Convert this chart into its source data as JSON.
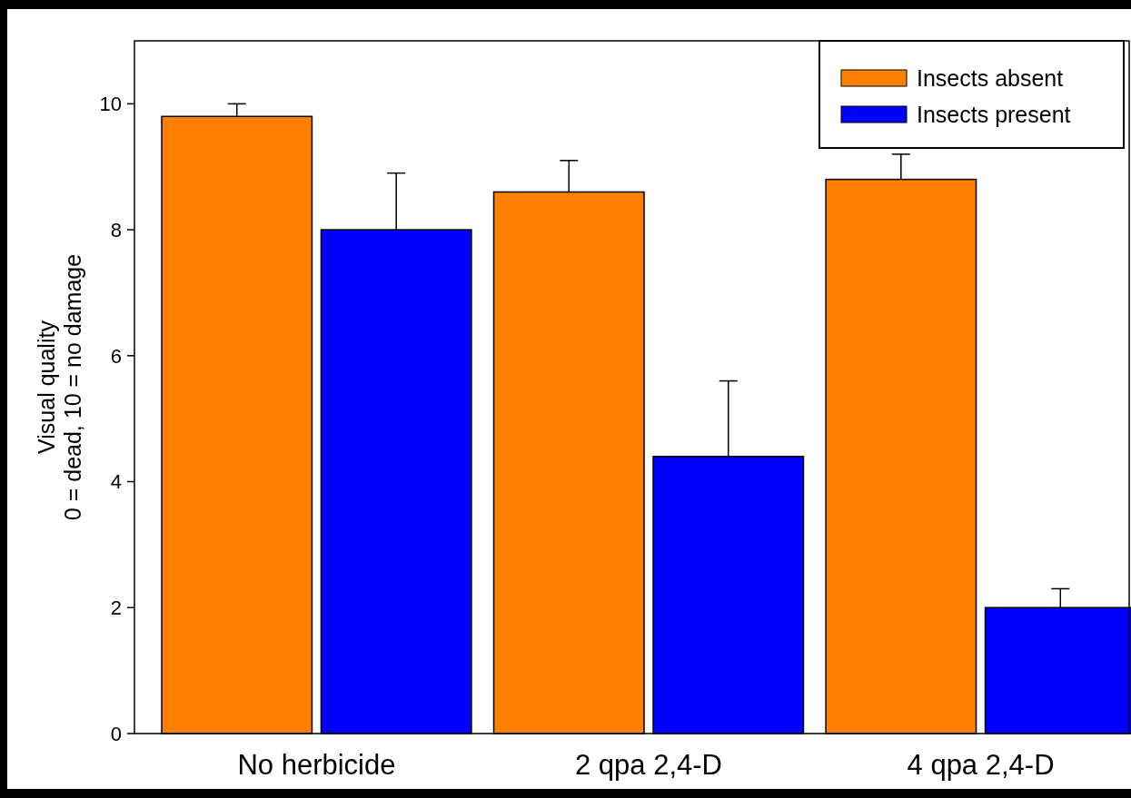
{
  "chart_data": {
    "type": "bar",
    "ylabel": "Visual quality\n0 = dead, 10 = no damage",
    "categories": [
      "No herbicide",
      "2 qpa 2,4-D",
      "4 qpa 2,4-D"
    ],
    "series": [
      {
        "name": "Insects absent",
        "color": "#ff7f00",
        "values": [
          9.8,
          8.6,
          8.8
        ],
        "errors": [
          [
            9.8,
            10.0
          ],
          [
            8.6,
            9.1
          ],
          [
            8.8,
            9.2
          ]
        ]
      },
      {
        "name": "Insects present",
        "color": "#0000ff",
        "values": [
          8.0,
          4.4,
          2.0
        ],
        "errors": [
          [
            8.0,
            8.9
          ],
          [
            4.4,
            5.6
          ],
          [
            2.0,
            2.3
          ]
        ]
      }
    ],
    "ylim": [
      0,
      11
    ],
    "yticks": [
      0,
      2,
      4,
      6,
      8,
      10
    ],
    "grid": false,
    "legend": "top right"
  }
}
